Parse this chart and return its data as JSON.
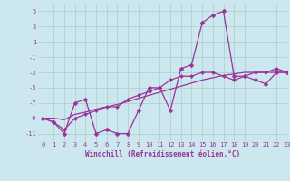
{
  "xlabel": "Windchill (Refroidissement éolien,°C)",
  "bg_color": "#cce8ee",
  "grid_color": "#aacccc",
  "line_color": "#993399",
  "x_hours": [
    0,
    1,
    2,
    3,
    4,
    5,
    6,
    7,
    8,
    9,
    10,
    11,
    12,
    13,
    14,
    15,
    16,
    17,
    18,
    19,
    20,
    21,
    22,
    23
  ],
  "line1_y": [
    -9,
    -9.5,
    -11,
    -7,
    -6.5,
    -11,
    -10.5,
    -11,
    -11,
    -8,
    -5,
    -5,
    -8,
    -2.5,
    -2,
    3.5,
    4.5,
    5,
    -3.5,
    -3.5,
    -4,
    -4.5,
    -3,
    -3
  ],
  "line2_y": [
    -9,
    -9,
    -9.2,
    -8.5,
    -8.2,
    -7.8,
    -7.5,
    -7.2,
    -6.8,
    -6.4,
    -6.0,
    -5.6,
    -5.2,
    -4.8,
    -4.4,
    -4.0,
    -3.7,
    -3.4,
    -3.2,
    -3.0,
    -3.0,
    -3.0,
    -3.0,
    -3.0
  ],
  "line3_y": [
    -9,
    -9.5,
    -10.5,
    -9,
    -8.5,
    -8,
    -7.5,
    -7.5,
    -6.5,
    -6,
    -5.5,
    -5,
    -4,
    -3.5,
    -3.5,
    -3,
    -3,
    -3.5,
    -4,
    -3.5,
    -3,
    -3,
    -2.5,
    -3
  ],
  "ylim": [
    -12,
    6
  ],
  "xlim": [
    -0.5,
    23
  ],
  "yticks": [
    5,
    3,
    1,
    -1,
    -3,
    -5,
    -7,
    -9,
    -11
  ],
  "xticks": [
    0,
    1,
    2,
    3,
    4,
    5,
    6,
    7,
    8,
    9,
    10,
    11,
    12,
    13,
    14,
    15,
    16,
    17,
    18,
    19,
    20,
    21,
    22,
    23
  ],
  "tick_fontsize": 5,
  "xlabel_fontsize": 5.5,
  "marker_size": 2.5,
  "linewidth": 0.9
}
